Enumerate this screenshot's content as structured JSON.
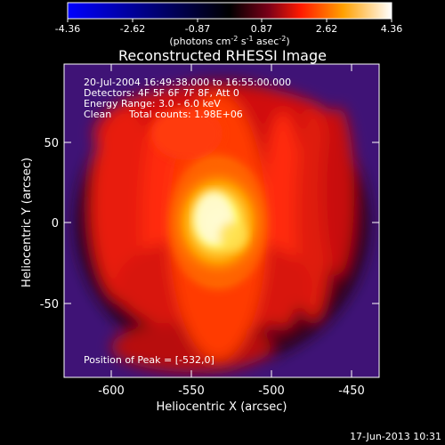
{
  "colorbar": {
    "ticks": [
      "-4.36",
      "-2.62",
      "-0.87",
      "0.87",
      "2.62",
      "4.36"
    ],
    "units_prefix": "(photons cm",
    "units_sup1": "-2",
    "units_mid": " s",
    "units_sup2": "-1",
    "units_mid2": " asec",
    "units_sup3": "-2",
    "units_suffix": ")"
  },
  "title": "Reconstructed RHESSI Image",
  "annotations": {
    "time_range": "20-Jul-2004 16:49:38.000 to 16:55:00.000",
    "detectors": "Detectors: 4F 5F 6F 7F 8F, Att 0",
    "energy": "Energy Range: 3.0 - 6.0 keV",
    "clean": "Clean",
    "counts": "Total counts: 1.98E+06",
    "peak": "Position of Peak = [-532,0]"
  },
  "axes": {
    "xlabel": "Heliocentric X (arcsec)",
    "ylabel": "Heliocentric Y (arcsec)",
    "xticks": [
      "-600",
      "-550",
      "-500",
      "-450"
    ],
    "yticks": [
      "50",
      "0",
      "-50"
    ]
  },
  "footer_timestamp": "17-Jun-2013 10:31"
}
